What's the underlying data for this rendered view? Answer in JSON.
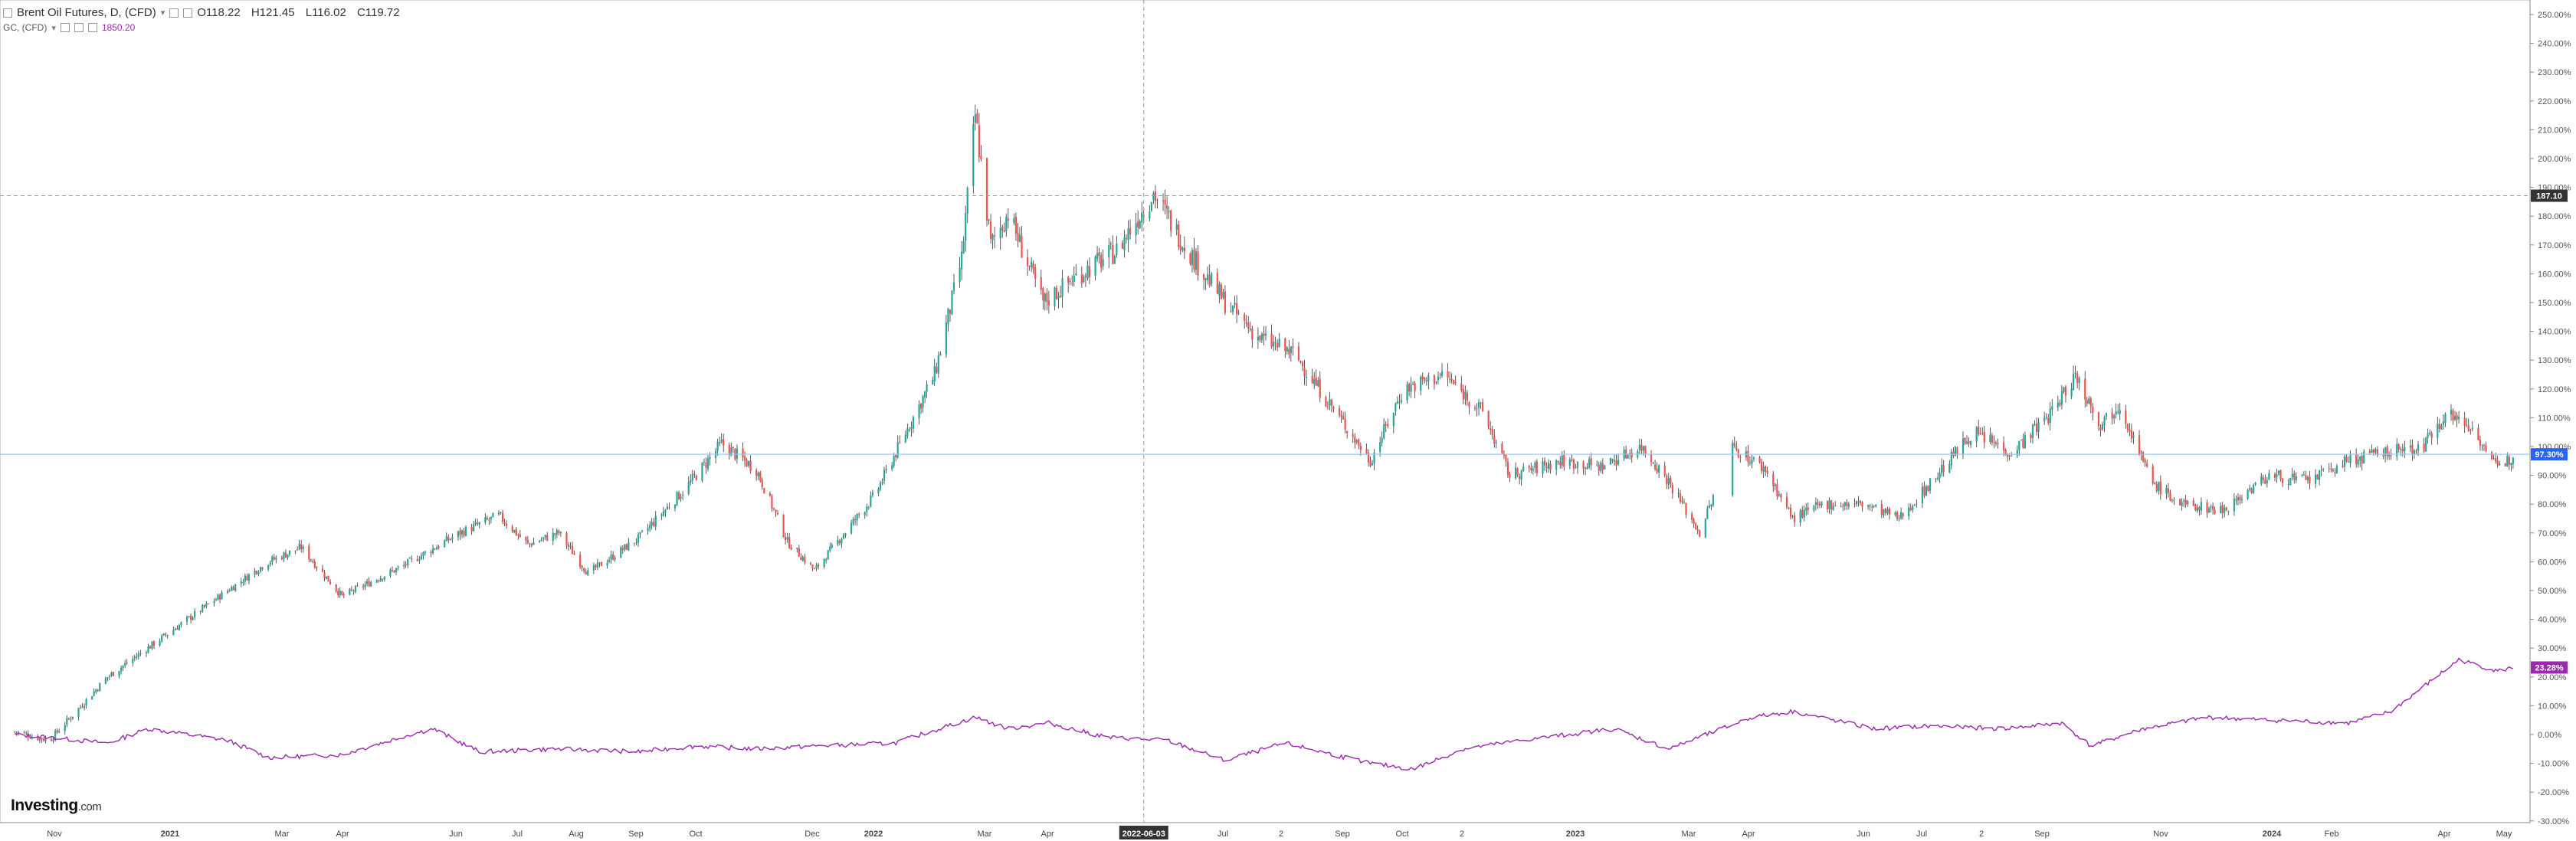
{
  "header": {
    "title": "Brent Oil Futures, D, (CFD)",
    "ohlc": {
      "open": "O118.22",
      "high": "H121.45",
      "low": "L116.02",
      "close": "C119.72"
    },
    "compare_symbol": "GC, (CFD)",
    "compare_value": "1850.20"
  },
  "logo": {
    "main": "Investing",
    "suffix": ".com"
  },
  "crosshair": {
    "date_label": "2022-06-03",
    "price_label": "187.10"
  },
  "last_labels": {
    "brent": "97.30%",
    "gold": "23.28%"
  },
  "colors": {
    "up": "#26a69a",
    "down": "#ef5350",
    "wick": "#333333",
    "gold_line": "#9c27b0",
    "brent_line": "#90caf9",
    "brent_label": "#2962ff",
    "crosshair_label": "#333333"
  },
  "chart_data": {
    "type": "line",
    "title": "Brent Oil Futures, D, (CFD)",
    "xlabel": "",
    "ylabel": "",
    "ylim": [
      -30,
      250
    ],
    "y_unit": "%",
    "y_ticks": [
      "250.00%",
      "240.00%",
      "230.00%",
      "220.00%",
      "210.00%",
      "200.00%",
      "190.00%",
      "180.00%",
      "170.00%",
      "160.00%",
      "150.00%",
      "140.00%",
      "130.00%",
      "120.00%",
      "110.00%",
      "100.00%",
      "90.00%",
      "80.00%",
      "70.00%",
      "60.00%",
      "50.00%",
      "40.00%",
      "30.00%",
      "20.00%",
      "10.00%",
      "0.00%",
      "-10.00%",
      "-20.00%",
      "-30.00%"
    ],
    "x_ticks": [
      "Nov",
      "2021",
      "Mar",
      "Apr",
      "Jun",
      "Jul",
      "Aug",
      "Sep",
      "Oct",
      "Dec",
      "2022",
      "Mar",
      "Apr",
      "2022-06-03",
      "Jul",
      "2",
      "Sep",
      "Oct",
      "2",
      "2023",
      "Mar",
      "Apr",
      "Jun",
      "Jul",
      "2",
      "Sep",
      "Nov",
      "2024",
      "Feb",
      "Apr",
      "May"
    ],
    "series": [
      {
        "name": "Brent Oil Futures, D, (CFD)",
        "style": "candlestick",
        "x": [
          "2020-10-28",
          "2020-11-15",
          "2020-12-15",
          "2021-01-15",
          "2021-02-15",
          "2021-03-08",
          "2021-03-25",
          "2021-04-15",
          "2021-05-15",
          "2021-06-15",
          "2021-07-05",
          "2021-07-20",
          "2021-08-05",
          "2021-08-20",
          "2021-09-15",
          "2021-10-10",
          "2021-10-28",
          "2021-11-15",
          "2021-12-01",
          "2021-12-15",
          "2022-01-15",
          "2022-02-15",
          "2022-03-01",
          "2022-03-08",
          "2022-03-16",
          "2022-03-25",
          "2022-04-12",
          "2022-05-01",
          "2022-05-20",
          "2022-06-08",
          "2022-06-25",
          "2022-07-15",
          "2022-08-01",
          "2022-08-20",
          "2022-09-10",
          "2022-09-28",
          "2022-10-15",
          "2022-11-05",
          "2022-11-25",
          "2022-12-09",
          "2023-01-05",
          "2023-01-25",
          "2023-02-15",
          "2023-03-01",
          "2023-03-17",
          "2023-04-03",
          "2023-04-20",
          "2023-05-04",
          "2023-05-20",
          "2023-06-10",
          "2023-06-28",
          "2023-07-15",
          "2023-08-05",
          "2023-08-25",
          "2023-09-15",
          "2023-09-27",
          "2023-10-10",
          "2023-10-20",
          "2023-11-05",
          "2023-11-20",
          "2023-12-12",
          "2024-01-05",
          "2024-01-25",
          "2024-02-15",
          "2024-03-05",
          "2024-03-25",
          "2024-04-05",
          "2024-04-20",
          "2024-05-02",
          "2024-05-10"
        ],
        "values": [
          1,
          -2,
          20,
          35,
          50,
          60,
          65,
          48,
          58,
          70,
          76,
          66,
          70,
          56,
          68,
          86,
          101,
          92,
          67,
          57,
          83,
          125,
          165,
          215,
          170,
          181,
          150,
          160,
          168,
          188,
          169,
          150,
          138,
          132,
          112,
          95,
          120,
          125,
          112,
          90,
          95,
          93,
          100,
          88,
          70,
          100,
          92,
          75,
          80,
          80,
          75,
          88,
          105,
          98,
          112,
          125,
          108,
          115,
          88,
          80,
          78,
          90,
          88,
          95,
          98,
          100,
          112,
          106,
          92,
          97
        ]
      },
      {
        "name": "GC, (CFD)",
        "style": "line",
        "x": [
          "2020-10-28",
          "2020-11-15",
          "2020-12-15",
          "2021-01-05",
          "2021-02-15",
          "2021-03-08",
          "2021-04-15",
          "2021-05-20",
          "2021-06-01",
          "2021-06-25",
          "2021-08-05",
          "2021-09-15",
          "2021-10-15",
          "2021-11-15",
          "2021-12-15",
          "2022-01-25",
          "2022-03-08",
          "2022-03-25",
          "2022-04-15",
          "2022-05-15",
          "2022-06-15",
          "2022-07-15",
          "2022-08-15",
          "2022-09-28",
          "2022-10-20",
          "2022-11-15",
          "2022-12-15",
          "2023-02-01",
          "2023-03-01",
          "2023-04-13",
          "2023-05-04",
          "2023-06-15",
          "2023-07-15",
          "2023-08-20",
          "2023-09-20",
          "2023-10-05",
          "2023-11-01",
          "2023-12-04",
          "2024-01-05",
          "2024-02-15",
          "2024-03-08",
          "2024-04-12",
          "2024-05-02",
          "2024-05-10"
        ],
        "values": [
          0,
          -1,
          -3,
          2,
          -2,
          -8,
          -7,
          0,
          2,
          -6,
          -5,
          -6,
          -4,
          -5,
          -4,
          -3,
          6,
          2,
          4,
          -1,
          -2,
          -9,
          -3,
          -10,
          -12,
          -5,
          -2,
          2,
          -5,
          6,
          8,
          2,
          3,
          2,
          4,
          -4,
          2,
          6,
          5,
          4,
          8,
          26,
          22,
          23.28
        ]
      }
    ]
  }
}
